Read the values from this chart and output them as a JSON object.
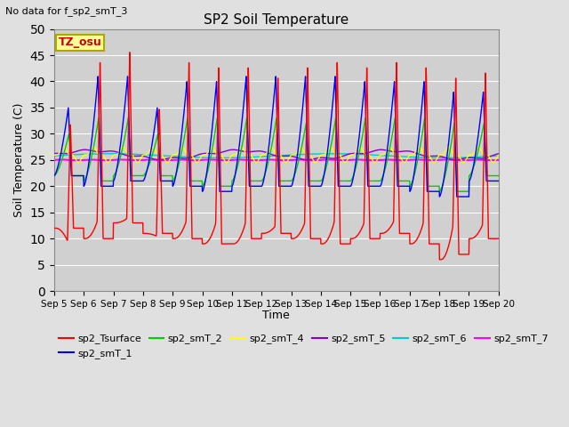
{
  "title": "SP2 Soil Temperature",
  "subtitle": "No data for f_sp2_smT_3",
  "ylabel": "Soil Temperature (C)",
  "xlabel": "Time",
  "ylim": [
    0,
    50
  ],
  "yticks": [
    0,
    5,
    10,
    15,
    20,
    25,
    30,
    35,
    40,
    45,
    50
  ],
  "tz_label": "TZ_osu",
  "bg_color": "#e0e0e0",
  "plot_bg_color": "#d0d0d0",
  "series_colors": {
    "sp2_Tsurface": "#ff0000",
    "sp2_smT_1": "#0000ff",
    "sp2_smT_2": "#00cc00",
    "sp2_smT_4": "#ffff00",
    "sp2_smT_5": "#8800cc",
    "sp2_smT_6": "#00cccc",
    "sp2_smT_7": "#ff00ff"
  },
  "x_tick_labels": [
    "Sep 5",
    "Sep 6",
    "Sep 7",
    "Sep 8",
    "Sep 9",
    "Sep 10",
    "Sep 11",
    "Sep 12",
    "Sep 13",
    "Sep 14",
    "Sep 15",
    "Sep 16",
    "Sep 17",
    "Sep 18",
    "Sep 19",
    "Sep 20"
  ],
  "num_days": 15,
  "pts_per_day": 144
}
